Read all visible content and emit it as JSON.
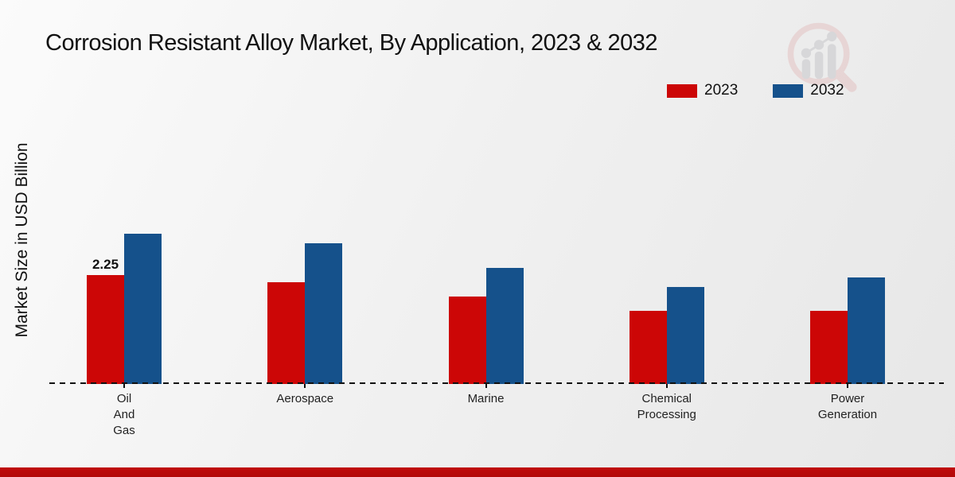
{
  "title": "Corrosion Resistant Alloy Market, By Application, 2023 & 2032",
  "y_axis_label": "Market Size in USD Billion",
  "legend": [
    {
      "label": "2023",
      "color": "#cc0606"
    },
    {
      "label": "2032",
      "color": "#15518b"
    }
  ],
  "logo_icon": "magnifier-bar-chart-watermark",
  "footer_bar_color": "#b20909",
  "chart_data": {
    "type": "bar",
    "title": "Corrosion Resistant Alloy Market, By Application, 2023 & 2032",
    "xlabel": "",
    "ylabel": "Market Size in USD Billion",
    "categories": [
      "Oil And Gas",
      "Aerospace",
      "Marine",
      "Chemical Processing",
      "Power Generation"
    ],
    "categories_display": [
      "Oil\nAnd\nGas",
      "Aerospace",
      "Marine",
      "Chemical\nProcessing",
      "Power\nGeneration"
    ],
    "series": [
      {
        "name": "2023",
        "color": "#cc0606",
        "values": [
          2.25,
          2.1,
          1.8,
          1.5,
          1.5
        ]
      },
      {
        "name": "2032",
        "color": "#15518b",
        "values": [
          3.1,
          2.9,
          2.4,
          2.0,
          2.2
        ]
      }
    ],
    "data_labels": [
      {
        "series": "2023",
        "category": "Oil And Gas",
        "text": "2.25"
      }
    ],
    "ylim": [
      0,
      3.5
    ],
    "grid": false,
    "y_axis_ticks_visible": false,
    "baseline_style": "dashed",
    "legend_position": "top-right"
  }
}
